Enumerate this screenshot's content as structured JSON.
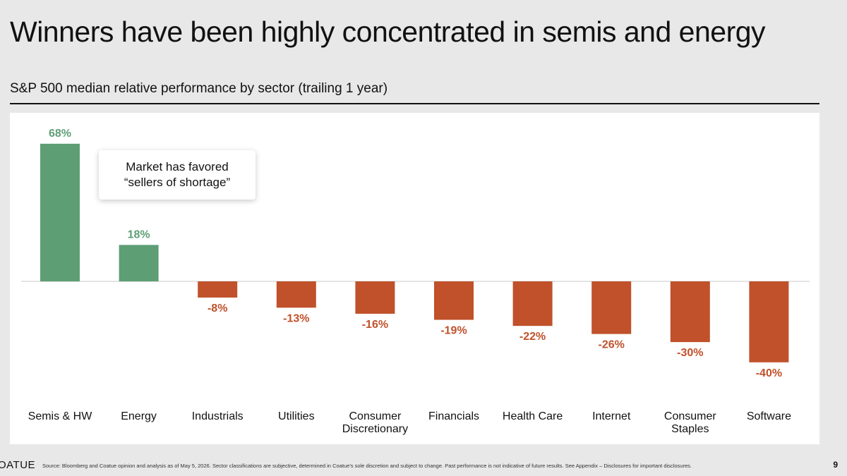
{
  "header": {
    "title": "Winners have been highly concentrated in semis and energy",
    "subtitle": "S&P 500 median relative performance by sector (trailing 1 year)"
  },
  "callout": {
    "text": "Market has favored\n“sellers of shortage”"
  },
  "footer": {
    "logo": "OATUE",
    "source": "Source: Bloomberg and Coatue opinion and analysis as of May 5, 2026. Sector classifications are subjective, determined in Coatue’s sole discretion and subject to change. Past performance is not indicative of future results. See Appendix – Disclosures for important disclosures.",
    "page_number": "9"
  },
  "colors": {
    "positive": "#5d9e75",
    "negative": "#c0512b"
  },
  "chart_data": {
    "type": "bar",
    "title": "",
    "xlabel": "",
    "ylabel": "",
    "categories": [
      "Semis & HW",
      "Energy",
      "Industrials",
      "Utilities",
      "Consumer\nDiscretionary",
      "Financials",
      "Health Care",
      "Internet",
      "Consumer\nStaples",
      "Software"
    ],
    "values": [
      68,
      18,
      -8,
      -13,
      -16,
      -19,
      -22,
      -26,
      -30,
      -40
    ],
    "value_labels": [
      "68%",
      "18%",
      "-8%",
      "-13%",
      "-16%",
      "-19%",
      "-22%",
      "-26%",
      "-30%",
      "-40%"
    ],
    "ylim": [
      -40,
      68
    ],
    "grid": false,
    "legend": "none"
  }
}
